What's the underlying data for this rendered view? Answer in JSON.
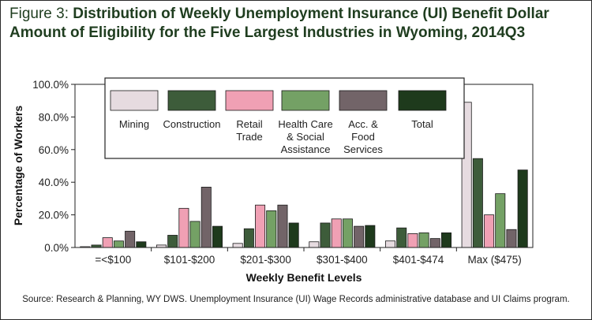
{
  "title": {
    "prefix": "Figure 3: ",
    "text": "Distribution of Weekly Unemployment Insurance (UI) Benefit Dollar Amount of Eligibility for the Five Largest Industries in Wyoming, 2014Q3"
  },
  "source": "Source:  Research & Planning, WY DWS. Unemployment Insurance (UI) Wage Records administrative database and UI Claims program.",
  "chart_data": {
    "type": "bar",
    "xlabel": "Weekly Benefit Levels",
    "ylabel": "Percentage of Workers",
    "ylim": [
      0,
      100
    ],
    "yticks": [
      {
        "value": 0,
        "label": "0.0%"
      },
      {
        "value": 20,
        "label": "20.0%"
      },
      {
        "value": 40,
        "label": "40.0%"
      },
      {
        "value": 60,
        "label": "60.0%"
      },
      {
        "value": 80,
        "label": "80.0%"
      },
      {
        "value": 100,
        "label": "100.0%"
      }
    ],
    "categories": [
      "=<$100",
      "$101-$200",
      "$201-$300",
      "$301-$400",
      "$401-$474",
      "Max ($475)"
    ],
    "legend_position": "top-inside",
    "grid": false,
    "series": [
      {
        "name": "Mining",
        "legend_lines": [
          "Mining"
        ],
        "color": "#e6dbe0",
        "values": [
          0.5,
          1.5,
          2.5,
          3.5,
          4,
          89
        ]
      },
      {
        "name": "Construction",
        "legend_lines": [
          "Construction"
        ],
        "color": "#3d5c3a",
        "values": [
          1.5,
          7.5,
          11.5,
          15,
          12,
          54.5
        ]
      },
      {
        "name": "Retail Trade",
        "legend_lines": [
          "Retail",
          "Trade"
        ],
        "color": "#f0a0b4",
        "values": [
          6,
          24,
          26,
          17.5,
          8.5,
          20
        ]
      },
      {
        "name": "Health Care & Social Assistance",
        "legend_lines": [
          "Health Care",
          "& Social",
          "Assistance"
        ],
        "color": "#74a165",
        "values": [
          4,
          16,
          22.5,
          17.5,
          9,
          33
        ]
      },
      {
        "name": "Acc. & Food Services",
        "legend_lines": [
          "Acc. &",
          "Food",
          "Services"
        ],
        "color": "#726468",
        "values": [
          10,
          37,
          26,
          13,
          5.5,
          11
        ]
      },
      {
        "name": "Total",
        "legend_lines": [
          "Total"
        ],
        "color": "#1e3a1c",
        "values": [
          3.5,
          13,
          15,
          13.5,
          9,
          47.5
        ]
      }
    ]
  }
}
